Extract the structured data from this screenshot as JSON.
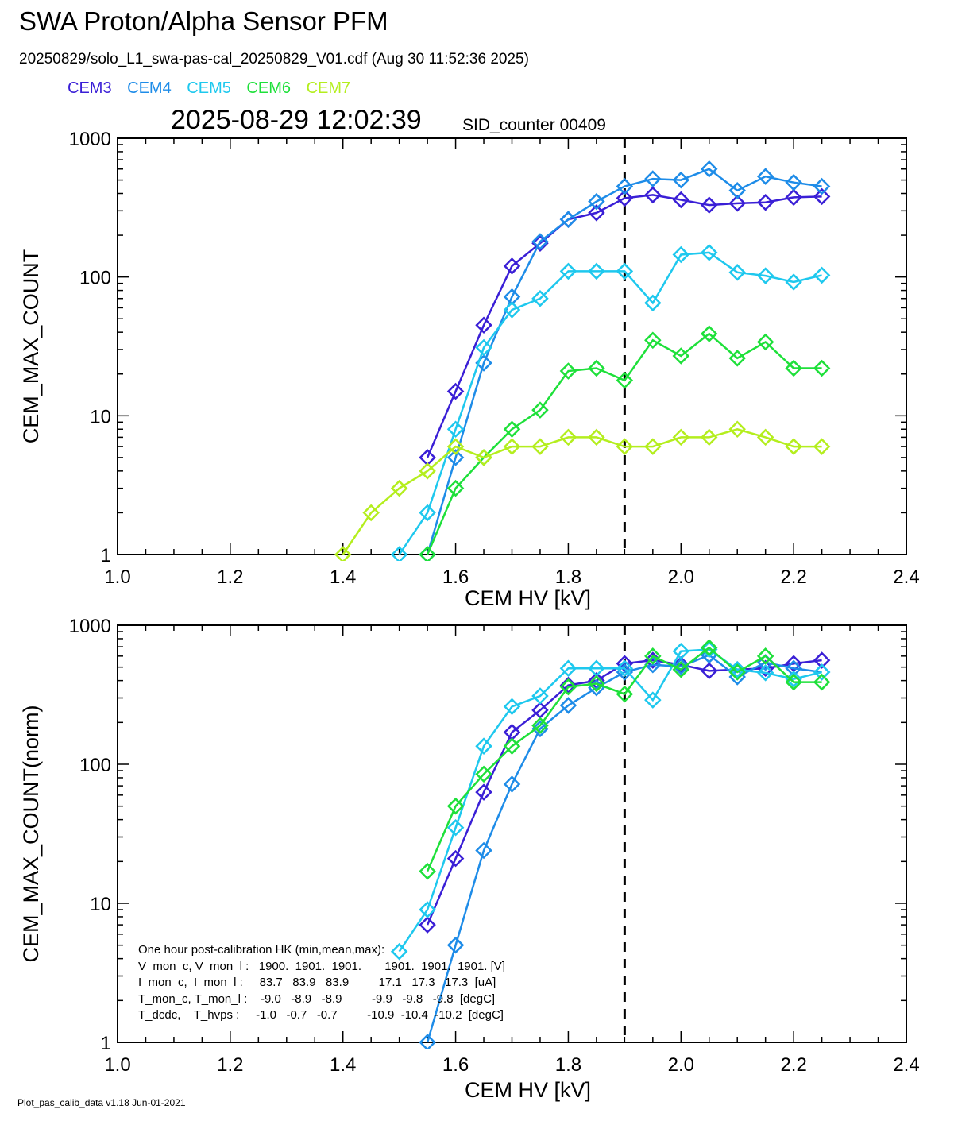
{
  "header": {
    "title": "SWA Proton/Alpha Sensor PFM",
    "file_line": "20250829/solo_L1_swa-pas-cal_20250829_V01.cdf  (Aug 30 11:52:36 2025)",
    "timestamp": "2025-08-29 12:02:39",
    "sid": "SID_counter 00409"
  },
  "legend": [
    {
      "label": "CEM3",
      "color": "#3a1fd6"
    },
    {
      "label": "CEM4",
      "color": "#1e8ce8"
    },
    {
      "label": "CEM5",
      "color": "#1ec8ee"
    },
    {
      "label": "CEM6",
      "color": "#1ee03a"
    },
    {
      "label": "CEM7",
      "color": "#b4ee1e"
    }
  ],
  "footer": "Plot_pas_calib_data v1.18 Jun-01-2021",
  "hk": {
    "lines": [
      "One hour post-calibration HK (min,mean,max):",
      "V_mon_c, V_mon_l :   1900.  1901.  1901.       1901.  1901.  1901. [V]",
      "I_mon_c,  I_mon_l :     83.7   83.9   83.9         17.1   17.3   17.3  [uA]",
      "T_mon_c, T_mon_l :    -9.0   -8.9   -8.9         -9.9   -9.8   -9.8  [degC]",
      "T_dcdc,    T_hvps :     -1.0   -0.7   -0.7         -10.9  -10.4  -10.2  [degC]"
    ]
  },
  "chart_data": [
    {
      "type": "line",
      "xlabel": "CEM HV [kV]",
      "ylabel": "CEM_MAX_COUNT",
      "xlim": [
        1.0,
        2.4
      ],
      "ylim": [
        1,
        1000
      ],
      "yscale": "log",
      "xticks": [
        "1.0",
        "1.2",
        "1.4",
        "1.6",
        "1.8",
        "2.0",
        "2.2",
        "2.4"
      ],
      "yticks": [
        "1",
        "10",
        "100",
        "1000"
      ],
      "vline_x": 1.9,
      "x": [
        1.4,
        1.45,
        1.5,
        1.55,
        1.6,
        1.65,
        1.7,
        1.75,
        1.8,
        1.85,
        1.9,
        1.95,
        2.0,
        2.05,
        2.1,
        2.15,
        2.2,
        2.25
      ],
      "series": [
        {
          "name": "CEM3",
          "values": [
            null,
            null,
            null,
            5,
            15,
            45,
            120,
            175,
            260,
            290,
            370,
            390,
            360,
            330,
            340,
            345,
            375,
            380
          ]
        },
        {
          "name": "CEM4",
          "values": [
            null,
            null,
            null,
            1,
            5,
            24,
            72,
            180,
            260,
            350,
            450,
            510,
            500,
            600,
            420,
            530,
            480,
            450
          ]
        },
        {
          "name": "CEM5",
          "values": [
            null,
            null,
            1,
            2,
            8,
            31,
            58,
            70,
            110,
            110,
            110,
            65,
            145,
            150,
            108,
            102,
            92,
            103
          ]
        },
        {
          "name": "CEM6",
          "values": [
            null,
            null,
            null,
            1,
            3,
            5,
            8,
            11,
            21,
            22,
            18,
            35,
            27,
            39,
            26,
            34,
            22,
            22
          ]
        },
        {
          "name": "CEM7",
          "values": [
            1,
            2,
            3,
            4,
            6,
            5,
            6,
            6,
            7,
            7,
            6,
            6,
            7,
            7,
            8,
            7,
            6,
            6
          ]
        }
      ]
    },
    {
      "type": "line",
      "xlabel": "CEM HV [kV]",
      "ylabel": "CEM_MAX_COUNT(norm)",
      "xlim": [
        1.0,
        2.4
      ],
      "ylim": [
        1,
        1000
      ],
      "yscale": "log",
      "xticks": [
        "1.0",
        "1.2",
        "1.4",
        "1.6",
        "1.8",
        "2.0",
        "2.2",
        "2.4"
      ],
      "yticks": [
        "1",
        "10",
        "100",
        "1000"
      ],
      "vline_x": 1.9,
      "x": [
        1.4,
        1.45,
        1.5,
        1.55,
        1.6,
        1.65,
        1.7,
        1.75,
        1.8,
        1.85,
        1.9,
        1.95,
        2.0,
        2.05,
        2.1,
        2.15,
        2.2,
        2.25
      ],
      "series": [
        {
          "name": "CEM3",
          "values": [
            null,
            null,
            null,
            7,
            21,
            63,
            170,
            245,
            370,
            400,
            530,
            560,
            520,
            470,
            480,
            490,
            530,
            560
          ]
        },
        {
          "name": "CEM4",
          "values": [
            null,
            null,
            null,
            1,
            5,
            24,
            72,
            180,
            265,
            355,
            460,
            520,
            505,
            610,
            425,
            540,
            490,
            460
          ]
        },
        {
          "name": "CEM5",
          "values": [
            null,
            null,
            4.5,
            9,
            35,
            135,
            260,
            310,
            490,
            490,
            490,
            290,
            650,
            670,
            480,
            455,
            410,
            460
          ]
        },
        {
          "name": "CEM6",
          "values": [
            null,
            null,
            null,
            17,
            50,
            85,
            135,
            190,
            360,
            380,
            320,
            600,
            480,
            690,
            460,
            600,
            390,
            390
          ]
        }
      ]
    }
  ]
}
